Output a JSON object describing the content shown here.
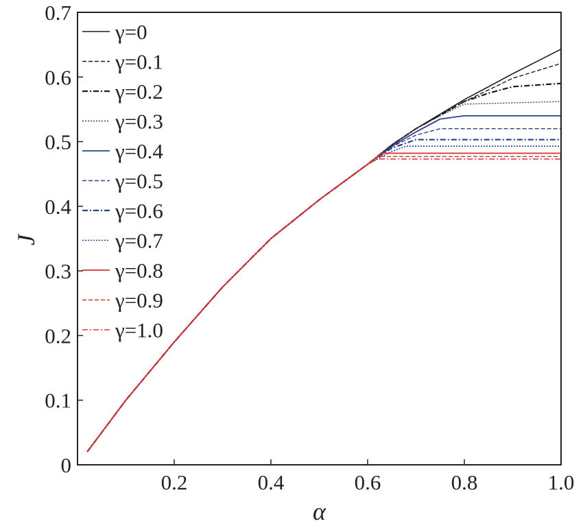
{
  "chart_data": {
    "type": "line",
    "title": "",
    "xlabel": "α",
    "ylabel": "J",
    "xlim": [
      0,
      1.0
    ],
    "ylim": [
      0,
      0.7
    ],
    "x_ticks": [
      {
        "value": 0.2,
        "label": "0.2"
      },
      {
        "value": 0.4,
        "label": "0.4"
      },
      {
        "value": 0.6,
        "label": "0.6"
      },
      {
        "value": 0.8,
        "label": "0.8"
      },
      {
        "value": 1.0,
        "label": "1.0"
      }
    ],
    "y_ticks": [
      {
        "value": 0,
        "label": "0"
      },
      {
        "value": 0.1,
        "label": "0.1"
      },
      {
        "value": 0.2,
        "label": "0.2"
      },
      {
        "value": 0.3,
        "label": "0.3"
      },
      {
        "value": 0.4,
        "label": "0.4"
      },
      {
        "value": 0.5,
        "label": "0.5"
      },
      {
        "value": 0.6,
        "label": "0.6"
      },
      {
        "value": 0.7,
        "label": "0.7"
      }
    ],
    "grid": false,
    "legend_position": "top-left",
    "series": [
      {
        "name": "γ=0",
        "color": "#1a1a1a",
        "dash": "solid",
        "width": 1.6,
        "x": [
          0.02,
          0.1,
          0.2,
          0.3,
          0.4,
          0.5,
          0.6,
          0.65,
          0.7,
          0.8,
          0.9,
          1.0
        ],
        "y": [
          0.02,
          0.1,
          0.19,
          0.275,
          0.35,
          0.41,
          0.465,
          0.495,
          0.52,
          0.565,
          0.605,
          0.643
        ]
      },
      {
        "name": "γ=0.1",
        "color": "#1a1a1a",
        "dash": "6,3",
        "width": 1.4,
        "x": [
          0.02,
          0.1,
          0.2,
          0.3,
          0.4,
          0.5,
          0.6,
          0.65,
          0.7,
          0.8,
          0.9,
          1.0
        ],
        "y": [
          0.02,
          0.1,
          0.19,
          0.275,
          0.35,
          0.41,
          0.465,
          0.495,
          0.52,
          0.562,
          0.598,
          0.621
        ]
      },
      {
        "name": "γ=0.2",
        "color": "#1a1a1a",
        "dash": "8,3,2,3",
        "width": 2.2,
        "x": [
          0.02,
          0.1,
          0.2,
          0.3,
          0.4,
          0.5,
          0.6,
          0.65,
          0.7,
          0.8,
          0.85,
          0.9,
          1.0
        ],
        "y": [
          0.02,
          0.1,
          0.19,
          0.275,
          0.35,
          0.41,
          0.465,
          0.495,
          0.52,
          0.562,
          0.575,
          0.585,
          0.59
        ]
      },
      {
        "name": "γ=0.3",
        "color": "#444444",
        "dash": "2,2",
        "width": 1.4,
        "x": [
          0.02,
          0.1,
          0.2,
          0.3,
          0.4,
          0.5,
          0.6,
          0.65,
          0.7,
          0.75,
          0.8,
          1.0
        ],
        "y": [
          0.02,
          0.1,
          0.19,
          0.275,
          0.35,
          0.41,
          0.465,
          0.495,
          0.52,
          0.54,
          0.558,
          0.562
        ]
      },
      {
        "name": "γ=0.4",
        "color": "#2c3f8c",
        "dash": "solid",
        "width": 1.8,
        "x": [
          0.02,
          0.1,
          0.2,
          0.3,
          0.4,
          0.5,
          0.6,
          0.65,
          0.7,
          0.75,
          0.8,
          1.0
        ],
        "y": [
          0.02,
          0.1,
          0.19,
          0.275,
          0.35,
          0.41,
          0.465,
          0.493,
          0.515,
          0.535,
          0.54,
          0.54
        ]
      },
      {
        "name": "γ=0.5",
        "color": "#2c3f8c",
        "dash": "6,3",
        "width": 1.4,
        "x": [
          0.02,
          0.1,
          0.2,
          0.3,
          0.4,
          0.5,
          0.6,
          0.65,
          0.7,
          0.75,
          1.0
        ],
        "y": [
          0.02,
          0.1,
          0.19,
          0.275,
          0.35,
          0.41,
          0.465,
          0.492,
          0.51,
          0.52,
          0.52
        ]
      },
      {
        "name": "γ=0.6",
        "color": "#2c3f8c",
        "dash": "8,3,2,3",
        "width": 2.2,
        "x": [
          0.02,
          0.1,
          0.2,
          0.3,
          0.4,
          0.5,
          0.6,
          0.65,
          0.7,
          1.0
        ],
        "y": [
          0.02,
          0.1,
          0.19,
          0.275,
          0.35,
          0.41,
          0.465,
          0.49,
          0.503,
          0.503
        ]
      },
      {
        "name": "γ=0.7",
        "color": "#2c3f8c",
        "dash": "2,2",
        "width": 1.6,
        "x": [
          0.02,
          0.1,
          0.2,
          0.3,
          0.4,
          0.5,
          0.6,
          0.65,
          0.68,
          1.0
        ],
        "y": [
          0.02,
          0.1,
          0.19,
          0.275,
          0.35,
          0.41,
          0.465,
          0.485,
          0.493,
          0.493
        ]
      },
      {
        "name": "γ=0.8",
        "color": "#d93030",
        "dash": "solid",
        "width": 1.8,
        "x": [
          0.02,
          0.1,
          0.2,
          0.3,
          0.4,
          0.5,
          0.6,
          0.63,
          1.0
        ],
        "y": [
          0.02,
          0.1,
          0.19,
          0.275,
          0.35,
          0.41,
          0.465,
          0.482,
          0.482
        ]
      },
      {
        "name": "γ=0.9",
        "color": "#d93030",
        "dash": "6,3",
        "width": 1.4,
        "x": [
          0.02,
          0.1,
          0.2,
          0.3,
          0.4,
          0.5,
          0.6,
          0.62,
          1.0
        ],
        "y": [
          0.02,
          0.1,
          0.19,
          0.275,
          0.35,
          0.41,
          0.465,
          0.477,
          0.477
        ]
      },
      {
        "name": "γ=1.0",
        "color": "#d93030",
        "dash": "8,3,2,3",
        "width": 1.4,
        "x": [
          0.02,
          0.1,
          0.2,
          0.3,
          0.4,
          0.5,
          0.6,
          0.62,
          1.0
        ],
        "y": [
          0.02,
          0.1,
          0.19,
          0.275,
          0.35,
          0.41,
          0.465,
          0.473,
          0.473
        ]
      }
    ]
  }
}
